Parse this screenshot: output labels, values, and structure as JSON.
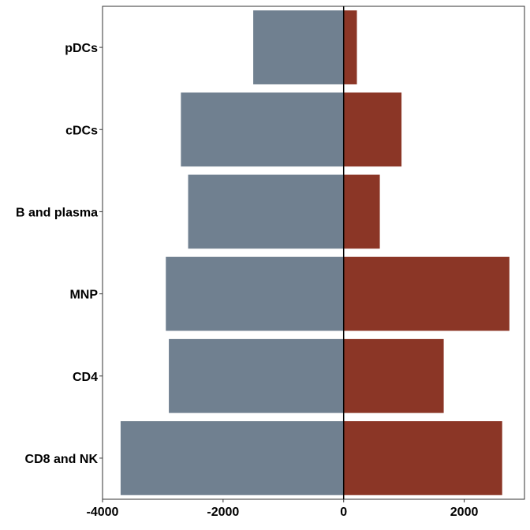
{
  "chart_data": {
    "type": "bar",
    "orientation": "horizontal",
    "diverging": true,
    "categories": [
      "pDCs",
      "cDCs",
      "B and plasma",
      "MNP",
      "CD4",
      "CD8 and NK"
    ],
    "series": [
      {
        "values": [
          -1500,
          -2700,
          -2580,
          -2950,
          -2900,
          -3700
        ],
        "color": "#708090"
      },
      {
        "values": [
          220,
          960,
          600,
          2750,
          1660,
          2630
        ],
        "color": "#8B3626"
      }
    ],
    "xlim": [
      -4000,
      3000
    ],
    "xticks": [
      -4000,
      -2000,
      0,
      2000
    ],
    "xtick_labels": [
      "-4000",
      "-2000",
      "0",
      "2000"
    ],
    "title": "",
    "xlabel": "",
    "ylabel": "",
    "grid": false,
    "legend": "none",
    "zero_line": true
  }
}
